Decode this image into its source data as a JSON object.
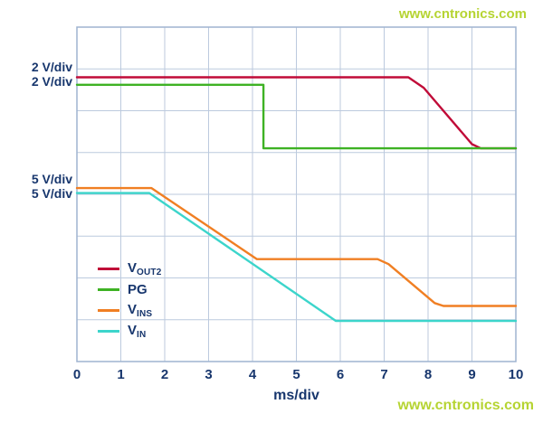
{
  "watermark": {
    "text": "www.cntronics.com",
    "color": "#b6d433"
  },
  "labels": {
    "left_top": [
      "2 V/div",
      "2 V/div"
    ],
    "left_mid": [
      "5 V/div",
      "5 V/div"
    ]
  },
  "chart_data": {
    "type": "line",
    "title": "",
    "xlabel": "ms/div",
    "ylabel": "",
    "xlim": [
      0,
      10
    ],
    "ylim": [
      0,
      8
    ],
    "x_ticks": [
      0,
      1,
      2,
      3,
      4,
      5,
      6,
      7,
      8,
      9,
      10
    ],
    "grid": true,
    "grid_color": "#bccade",
    "axis_color": "#9fb4d0",
    "text_color": "#17366d",
    "legend_position": "inside-bottom-left",
    "series": [
      {
        "name": "VOUT2",
        "label_main": "V",
        "label_sub": "OUT2",
        "scale": "2 V/div",
        "color": "#c00b38",
        "points": [
          [
            0,
            6.8
          ],
          [
            7.55,
            6.8
          ],
          [
            7.9,
            6.55
          ],
          [
            9.0,
            5.2
          ],
          [
            9.2,
            5.1
          ],
          [
            10,
            5.1
          ]
        ]
      },
      {
        "name": "PG",
        "label_main": "PG",
        "label_sub": "",
        "scale": "2 V/div",
        "color": "#3eb224",
        "points": [
          [
            0,
            6.62
          ],
          [
            4.25,
            6.62
          ],
          [
            4.25,
            5.1
          ],
          [
            10,
            5.1
          ]
        ]
      },
      {
        "name": "VINS",
        "label_main": "V",
        "label_sub": "INS",
        "scale": "5 V/div",
        "color": "#f07f23",
        "points": [
          [
            0,
            4.15
          ],
          [
            1.7,
            4.15
          ],
          [
            4.1,
            2.45
          ],
          [
            6.85,
            2.45
          ],
          [
            7.1,
            2.33
          ],
          [
            8.15,
            1.4
          ],
          [
            8.35,
            1.33
          ],
          [
            10,
            1.33
          ]
        ]
      },
      {
        "name": "VIN",
        "label_main": "V",
        "label_sub": "IN",
        "scale": "5 V/div",
        "color": "#3cd5cb",
        "points": [
          [
            0,
            4.03
          ],
          [
            1.65,
            4.03
          ],
          [
            5.9,
            0.97
          ],
          [
            10,
            0.97
          ]
        ]
      }
    ]
  }
}
